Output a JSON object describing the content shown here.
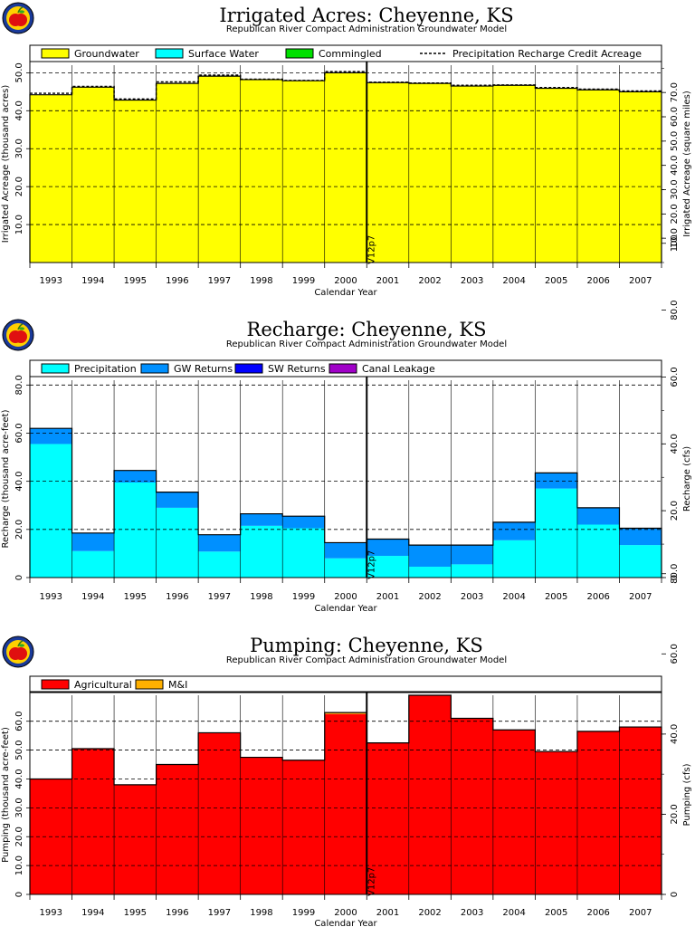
{
  "chart_data": [
    {
      "id": "irrigated",
      "type": "area",
      "title": "Irrigated Acres: Cheyenne, KS",
      "subtitle": "Republican River Compact Administration Groundwater Model",
      "xlabel": "Calendar Year",
      "ylabel": "Irrigated Acreage (thousand acres)",
      "y2label": "Irrigated Acreage (square miles)",
      "marker_label": "V12p7",
      "marker_after_category": "2000",
      "categories": [
        "1993",
        "1994",
        "1995",
        "1996",
        "1997",
        "1998",
        "1999",
        "2000",
        "2001",
        "2002",
        "2003",
        "2004",
        "2005",
        "2006",
        "2007"
      ],
      "ylim": [
        0,
        52
      ],
      "yticks": [
        "10.0",
        "20.0",
        "30.0",
        "40.0",
        "50.0"
      ],
      "gridlines": [
        10,
        20,
        30,
        40,
        50
      ],
      "y2ticks": [
        "10.0",
        "20.0",
        "30.0",
        "40.0",
        "50.0",
        "60.0",
        "70.0"
      ],
      "y2_scale": 1.5625,
      "series": [
        {
          "name": "Groundwater",
          "color": "#ffff00",
          "values": [
            44.2,
            46.2,
            42.8,
            47.2,
            49.1,
            48.2,
            47.9,
            50.0,
            47.4,
            47.2,
            46.5,
            46.7,
            45.9,
            45.5,
            45.0
          ]
        },
        {
          "name": "Surface Water",
          "color": "#00ffff",
          "values": [
            0,
            0,
            0,
            0,
            0,
            0,
            0,
            0,
            0,
            0,
            0,
            0,
            0,
            0,
            0
          ]
        },
        {
          "name": "Commingled",
          "color": "#00e000",
          "values": [
            0,
            0,
            0,
            0,
            0,
            0,
            0,
            0,
            0,
            0,
            0,
            0,
            0,
            0,
            0
          ]
        }
      ],
      "dashed_series": {
        "name": "Precipitation Recharge Credit Acreage",
        "values": [
          44.6,
          46.4,
          43.1,
          47.6,
          49.4,
          48.3,
          48.0,
          50.3,
          47.5,
          47.3,
          46.7,
          46.8,
          46.1,
          45.7,
          45.2
        ]
      }
    },
    {
      "id": "recharge",
      "type": "area",
      "title": "Recharge: Cheyenne, KS",
      "subtitle": "Republican River Compact Administration Groundwater Model",
      "xlabel": "Calendar Year",
      "ylabel": "Recharge (thousand acre-feet)",
      "y2label": "Recharge (cfs)",
      "marker_label": "V12p7",
      "marker_after_category": "2000",
      "categories": [
        "1993",
        "1994",
        "1995",
        "1996",
        "1997",
        "1998",
        "1999",
        "2000",
        "2001",
        "2002",
        "2003",
        "2004",
        "2005",
        "2006",
        "2007"
      ],
      "ylim": [
        0,
        82
      ],
      "yticks": [
        "0",
        "20.0",
        "40.0",
        "60.0",
        "80.0"
      ],
      "gridlines": [
        20,
        40,
        60,
        80
      ],
      "y2ticks": [
        "0",
        "20.0",
        "40.0",
        "60.0",
        "80.0",
        "100"
      ],
      "y2_scale": 0.72,
      "series": [
        {
          "name": "Precipitation",
          "color": "#00ffff",
          "values": [
            55.5,
            11.0,
            39.5,
            29.0,
            10.8,
            21.5,
            20.5,
            8.0,
            9.0,
            4.5,
            5.5,
            15.5,
            37.0,
            22.0,
            13.5
          ]
        },
        {
          "name": "GW Returns",
          "color": "#0090ff",
          "values": [
            6.5,
            7.5,
            5.0,
            6.5,
            7.0,
            5.0,
            5.0,
            6.5,
            7.0,
            9.0,
            8.0,
            7.5,
            6.5,
            7.0,
            7.0
          ]
        },
        {
          "name": "SW Returns",
          "color": "#0000ff",
          "values": [
            0,
            0,
            0,
            0,
            0,
            0,
            0,
            0,
            0,
            0,
            0,
            0,
            0,
            0,
            0
          ]
        },
        {
          "name": "Canal Leakage",
          "color": "#a000c8",
          "values": [
            0,
            0,
            0,
            0,
            0,
            0,
            0,
            0,
            0,
            0,
            0,
            0,
            0,
            0,
            0
          ]
        }
      ]
    },
    {
      "id": "pumping",
      "type": "area",
      "title": "Pumping: Cheyenne, KS",
      "subtitle": "Republican River Compact Administration Groundwater Model",
      "xlabel": "Calendar Year",
      "ylabel": "Pumping (thousand acre-feet)",
      "y2label": "Pumping (cfs)",
      "marker_label": "V12p7",
      "marker_after_category": "2000",
      "categories": [
        "1993",
        "1994",
        "1995",
        "1996",
        "1997",
        "1998",
        "1999",
        "2000",
        "2001",
        "2002",
        "2003",
        "2004",
        "2005",
        "2006",
        "2007"
      ],
      "ylim": [
        0,
        69
      ],
      "yticks": [
        "0",
        "10.0",
        "20.0",
        "30.0",
        "40.0",
        "50.0",
        "60.0"
      ],
      "gridlines": [
        10,
        20,
        30,
        40,
        50,
        60
      ],
      "y2ticks": [
        "0",
        "20.0",
        "40.0",
        "60.0",
        "80.0"
      ],
      "y2_scale": 0.72,
      "series": [
        {
          "name": "Agricultural",
          "color": "#ff0000",
          "values": [
            40.0,
            50.5,
            38.0,
            45.0,
            56.0,
            47.5,
            46.5,
            62.5,
            52.5,
            69.0,
            61.0,
            57.0,
            49.5,
            56.5,
            58.0
          ]
        },
        {
          "name": "M&I",
          "color": "#ffb000",
          "values": [
            0,
            0,
            0,
            0,
            0,
            0,
            0,
            0.5,
            0,
            0,
            0,
            0,
            0,
            0,
            0
          ]
        }
      ]
    }
  ]
}
